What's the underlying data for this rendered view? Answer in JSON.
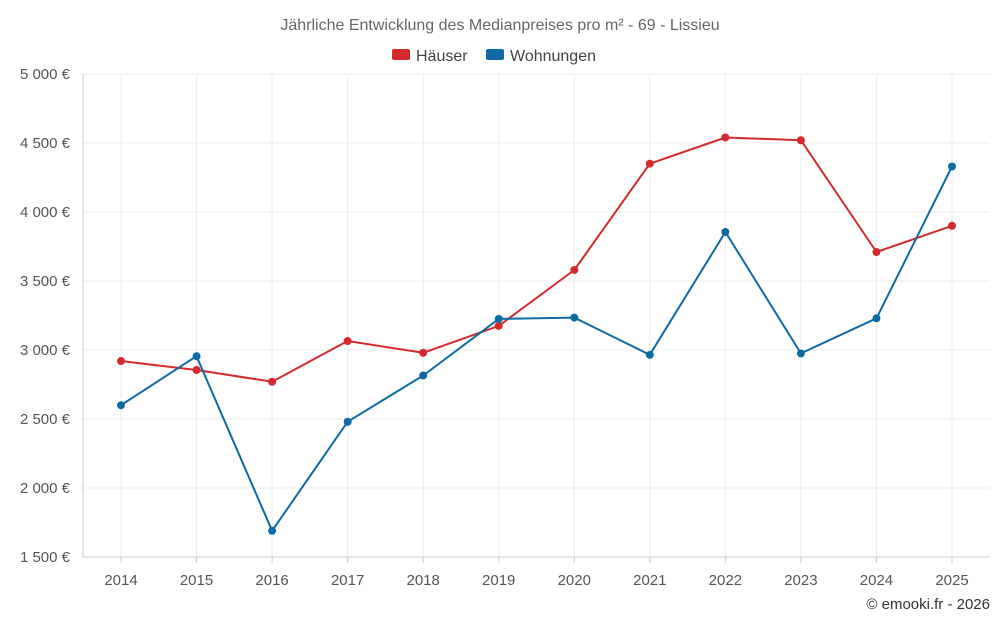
{
  "chart_data": {
    "type": "line",
    "title": "Jährliche Entwicklung des Medianpreises pro m² - 69 - Lissieu",
    "categories": [
      "2014",
      "2015",
      "2016",
      "2017",
      "2018",
      "2019",
      "2020",
      "2021",
      "2022",
      "2023",
      "2024",
      "2025"
    ],
    "y_ticks": [
      1500,
      2000,
      2500,
      3000,
      3500,
      4000,
      4500,
      5000
    ],
    "y_tick_labels": [
      "1 500 €",
      "2 000 €",
      "2 500 €",
      "3 000 €",
      "3 500 €",
      "4 000 €",
      "4 500 €",
      "5 000 €"
    ],
    "ylim": [
      1500,
      5000
    ],
    "ylabel": "",
    "xlabel": "",
    "legend_position": "top-center",
    "grid": true,
    "series": [
      {
        "name": "Häuser",
        "color": "#d42a2e",
        "values": [
          2920,
          2855,
          2770,
          3065,
          2980,
          3175,
          3580,
          4350,
          4540,
          4520,
          3710,
          3900
        ]
      },
      {
        "name": "Wohnungen",
        "color": "#0d6aa3",
        "values": [
          2600,
          2955,
          1690,
          2480,
          2815,
          3225,
          3235,
          2965,
          3855,
          2975,
          3230,
          4330
        ]
      }
    ]
  },
  "credit": "© emooki.fr - 2026"
}
